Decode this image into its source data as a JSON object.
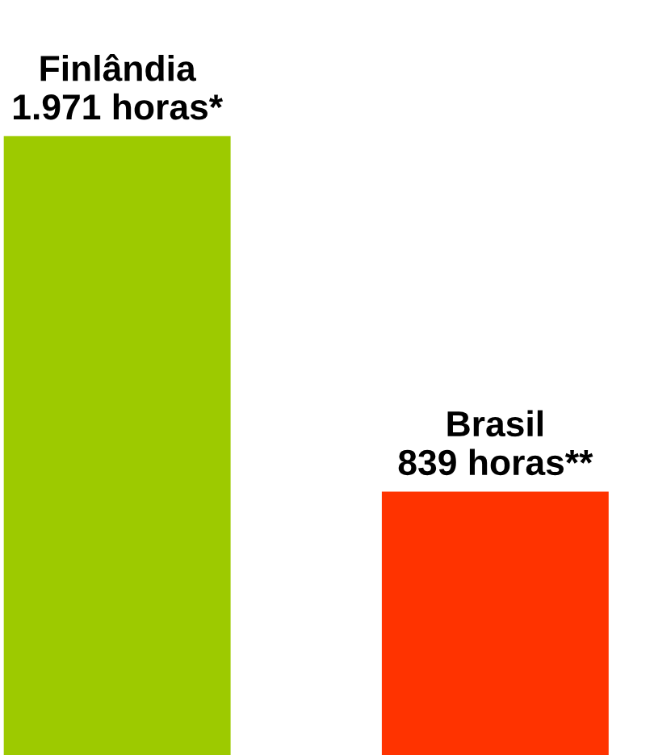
{
  "chart_data": {
    "type": "bar",
    "categories": [
      "Finlândia",
      "Brasil"
    ],
    "values": [
      1971,
      839
    ],
    "colors": [
      "#9dca00",
      "#ff3300"
    ],
    "value_labels": [
      "1.971 horas*",
      "839 horas**"
    ]
  }
}
